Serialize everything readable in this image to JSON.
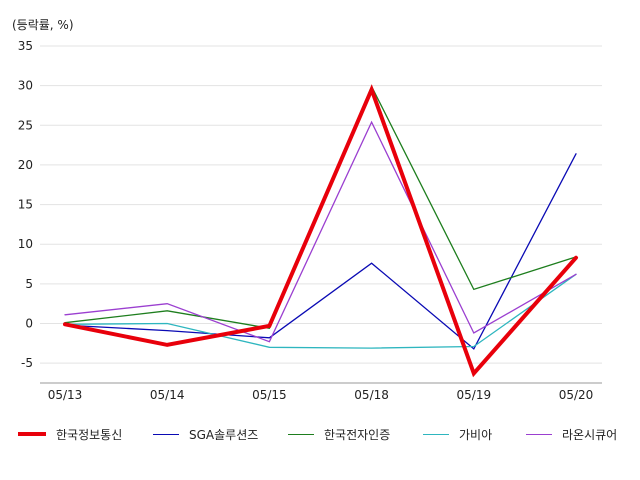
{
  "chart_data": {
    "type": "line",
    "unit_label": "(등락률, %)",
    "categories": [
      "05/13",
      "05/14",
      "05/15",
      "05/18",
      "05/19",
      "05/20"
    ],
    "ylim": [
      -7.5,
      35
    ],
    "yticks": [
      35,
      30,
      25,
      20,
      15,
      10,
      5,
      0,
      -5
    ],
    "grid": true,
    "legend_position": "bottom",
    "series": [
      {
        "name": "한국정보통신",
        "color": "#e8000b",
        "emphasis": true,
        "values": [
          -0.1,
          -2.7,
          -0.3,
          29.5,
          -6.3,
          8.3
        ]
      },
      {
        "name": "SGA솔루션즈",
        "color": "#0a0ab4",
        "values": [
          -0.2,
          -0.9,
          -1.8,
          7.6,
          -3.2,
          21.4
        ]
      },
      {
        "name": "한국전자인증",
        "color": "#1e7e1e",
        "values": [
          0.1,
          1.6,
          -0.6,
          29.9,
          4.3,
          8.4
        ]
      },
      {
        "name": "가비아",
        "color": "#2eb6bf",
        "values": [
          -0.1,
          0.0,
          -3.0,
          -3.1,
          -2.9,
          6.2
        ]
      },
      {
        "name": "라온시큐어",
        "color": "#9b3fd0",
        "values": [
          1.1,
          2.5,
          -2.3,
          25.4,
          -1.2,
          6.2
        ]
      }
    ]
  }
}
